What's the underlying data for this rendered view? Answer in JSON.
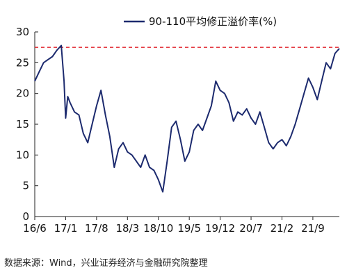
{
  "source_note": "数据来源：Wind，兴业证券经济与金融研究院整理",
  "chart_data": {
    "type": "line",
    "x_ticks": [
      "16/6",
      "17/1",
      "17/8",
      "18/3",
      "18/10",
      "19/5",
      "19/12",
      "20/7",
      "21/2",
      "21/9"
    ],
    "y_ticks": [
      "0",
      "5",
      "10",
      "15",
      "20",
      "25",
      "30"
    ],
    "ylim": [
      0,
      30
    ],
    "xlim": [
      "2016-06",
      "2022-03"
    ],
    "reference_line": {
      "y": 27.5,
      "style": "dashed",
      "color": "#e0202a"
    },
    "grid": false,
    "legend_position": "top",
    "series": [
      {
        "name": "90-110平均修正溢价率(%)",
        "color": "#1c2a6e",
        "points": [
          [
            "2016-06",
            22.0
          ],
          [
            "2016-07",
            23.5
          ],
          [
            "2016-08",
            25.0
          ],
          [
            "2016-09",
            25.5
          ],
          [
            "2016-10",
            26.0
          ],
          [
            "2016-11",
            27.0
          ],
          [
            "2016-12",
            27.8
          ],
          [
            "2016-12-20",
            22.0
          ],
          [
            "2017-01",
            16.0
          ],
          [
            "2017-01-15",
            19.5
          ],
          [
            "2017-02",
            18.5
          ],
          [
            "2017-03",
            17.0
          ],
          [
            "2017-04",
            16.5
          ],
          [
            "2017-05",
            13.5
          ],
          [
            "2017-06",
            12.0
          ],
          [
            "2017-07",
            15.0
          ],
          [
            "2017-08",
            18.0
          ],
          [
            "2017-09",
            20.5
          ],
          [
            "2017-10",
            16.5
          ],
          [
            "2017-11",
            13.0
          ],
          [
            "2017-12",
            8.0
          ],
          [
            "2018-01",
            11.0
          ],
          [
            "2018-02",
            12.0
          ],
          [
            "2018-03",
            10.5
          ],
          [
            "2018-04",
            10.0
          ],
          [
            "2018-05",
            9.0
          ],
          [
            "2018-06",
            8.0
          ],
          [
            "2018-07",
            10.0
          ],
          [
            "2018-08",
            8.0
          ],
          [
            "2018-09",
            7.5
          ],
          [
            "2018-10",
            6.0
          ],
          [
            "2018-11",
            4.0
          ],
          [
            "2018-12",
            9.0
          ],
          [
            "2019-01",
            14.5
          ],
          [
            "2019-02",
            15.5
          ],
          [
            "2019-03",
            12.5
          ],
          [
            "2019-04",
            9.0
          ],
          [
            "2019-05",
            10.5
          ],
          [
            "2019-06",
            14.0
          ],
          [
            "2019-07",
            15.0
          ],
          [
            "2019-08",
            14.0
          ],
          [
            "2019-09",
            16.0
          ],
          [
            "2019-10",
            18.0
          ],
          [
            "2019-11",
            22.0
          ],
          [
            "2019-12",
            20.5
          ],
          [
            "2020-01",
            20.0
          ],
          [
            "2020-02",
            18.5
          ],
          [
            "2020-03",
            15.5
          ],
          [
            "2020-04",
            17.0
          ],
          [
            "2020-05",
            16.5
          ],
          [
            "2020-06",
            17.5
          ],
          [
            "2020-07",
            16.0
          ],
          [
            "2020-08",
            15.0
          ],
          [
            "2020-09",
            17.0
          ],
          [
            "2020-10",
            14.5
          ],
          [
            "2020-11",
            12.0
          ],
          [
            "2020-12",
            11.0
          ],
          [
            "2021-01",
            12.0
          ],
          [
            "2021-02",
            12.5
          ],
          [
            "2021-03",
            11.5
          ],
          [
            "2021-04",
            13.0
          ],
          [
            "2021-05",
            15.0
          ],
          [
            "2021-06",
            17.5
          ],
          [
            "2021-07",
            20.0
          ],
          [
            "2021-08",
            22.5
          ],
          [
            "2021-09",
            21.0
          ],
          [
            "2021-10",
            19.0
          ],
          [
            "2021-11",
            22.0
          ],
          [
            "2021-12",
            25.0
          ],
          [
            "2022-01",
            24.0
          ],
          [
            "2022-02",
            26.5
          ],
          [
            "2022-03",
            27.3
          ]
        ]
      }
    ]
  }
}
